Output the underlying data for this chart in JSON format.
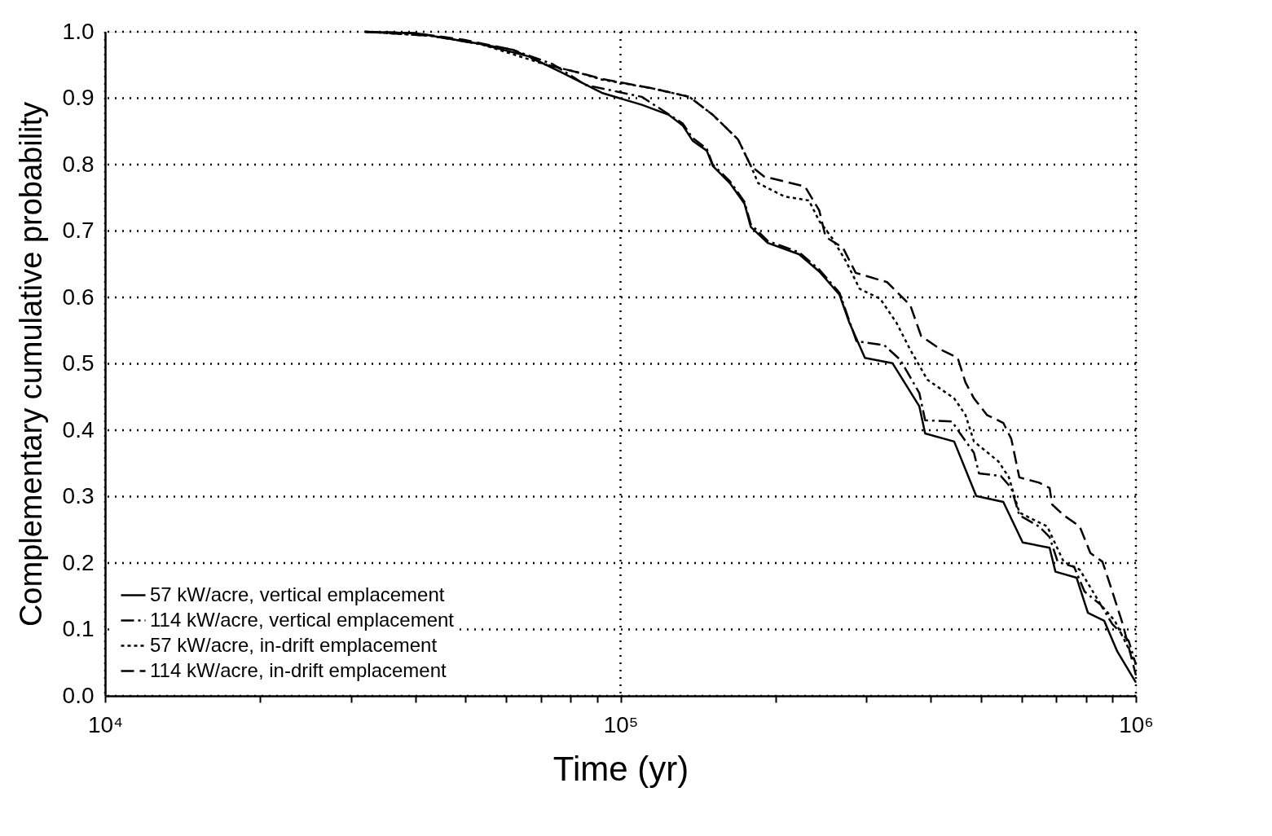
{
  "chart_data": {
    "type": "line",
    "xlabel": "Time (yr)",
    "ylabel": "Complementary cumulative probability",
    "log": "x",
    "xlim": [
      10000,
      1000000
    ],
    "ylim": [
      0,
      1
    ],
    "xticks": [
      {
        "value": 10000,
        "label": "10⁴"
      },
      {
        "value": 20000,
        "label": null
      },
      {
        "value": 30000,
        "label": null
      },
      {
        "value": 40000,
        "label": null
      },
      {
        "value": 50000,
        "label": null
      },
      {
        "value": 60000,
        "label": null
      },
      {
        "value": 70000,
        "label": null
      },
      {
        "value": 80000,
        "label": null
      },
      {
        "value": 90000,
        "label": null
      },
      {
        "value": 100000,
        "label": "10⁵"
      },
      {
        "value": 200000,
        "label": null
      },
      {
        "value": 300000,
        "label": null
      },
      {
        "value": 400000,
        "label": null
      },
      {
        "value": 500000,
        "label": null
      },
      {
        "value": 600000,
        "label": null
      },
      {
        "value": 700000,
        "label": null
      },
      {
        "value": 800000,
        "label": null
      },
      {
        "value": 900000,
        "label": null
      },
      {
        "value": 1000000,
        "label": "10⁶"
      }
    ],
    "yticks": [
      {
        "value": 0,
        "label": "0.0"
      },
      0.1,
      0.2,
      0.3,
      0.4,
      0.5,
      0.6,
      0.7,
      0.8,
      0.9,
      {
        "value": 1,
        "label": "1.0"
      }
    ],
    "grid": true,
    "legend": "bottom left",
    "series": [
      {
        "name": "57 kW/acre, vertical emplacement",
        "color": "#000000",
        "line_style": "solid",
        "x": [
          32000,
          40000,
          53300,
          66300,
          76700,
          92000,
          110000,
          124000,
          132000,
          138000,
          147000,
          151000,
          163000,
          174000,
          179000,
          193000,
          222000,
          243000,
          266000,
          278000,
          298000,
          337000,
          380000,
          390000,
          444000,
          490000,
          553000,
          603000,
          680000,
          698000,
          767000,
          807000,
          868000,
          920000,
          1000000
        ],
        "values": [
          1.0,
          0.998,
          0.982,
          0.963,
          0.939,
          0.908,
          0.89,
          0.875,
          0.859,
          0.836,
          0.821,
          0.798,
          0.772,
          0.741,
          0.706,
          0.682,
          0.665,
          0.639,
          0.604,
          0.562,
          0.509,
          0.501,
          0.436,
          0.395,
          0.383,
          0.301,
          0.292,
          0.231,
          0.223,
          0.187,
          0.178,
          0.125,
          0.113,
          0.067,
          0.02
        ]
      },
      {
        "name": "114 kW/acre, vertical emplacement",
        "color": "#000000",
        "line_style": "dashdot",
        "x": [
          32000,
          42800,
          61700,
          74000,
          85500,
          110000,
          132000,
          138000,
          147000,
          151000,
          163000,
          174000,
          179000,
          193000,
          222000,
          243000,
          266000,
          287000,
          325000,
          349000,
          380000,
          390000,
          440000,
          456000,
          485000,
          496000,
          547000,
          573000,
          594000,
          649000,
          680000,
          705000,
          759000,
          795000,
          855000,
          900000,
          968000,
          1000000
        ],
        "values": [
          1.0,
          0.994,
          0.973,
          0.951,
          0.92,
          0.902,
          0.862,
          0.84,
          0.824,
          0.8,
          0.775,
          0.744,
          0.71,
          0.685,
          0.668,
          0.642,
          0.607,
          0.534,
          0.528,
          0.506,
          0.456,
          0.415,
          0.413,
          0.395,
          0.366,
          0.335,
          0.331,
          0.313,
          0.272,
          0.255,
          0.239,
          0.202,
          0.194,
          0.157,
          0.137,
          0.108,
          0.083,
          0.047
        ]
      },
      {
        "name": "57 kW/acre, in-drift emplacement",
        "color": "#000000",
        "line_style": "dotted",
        "x": [
          32000,
          42800,
          53300,
          71300,
          82500,
          92000,
          115000,
          136000,
          151000,
          169000,
          179000,
          185000,
          208000,
          232000,
          243000,
          257000,
          274000,
          291000,
          319000,
          343000,
          365000,
          394000,
          444000,
          467000,
          485000,
          541000,
          567000,
          594000,
          673000,
          724000,
          778000,
          855000,
          910000,
          968000,
          1000000
        ],
        "values": [
          1.0,
          0.994,
          0.982,
          0.951,
          0.939,
          0.928,
          0.915,
          0.902,
          0.875,
          0.838,
          0.798,
          0.772,
          0.752,
          0.746,
          0.715,
          0.69,
          0.654,
          0.613,
          0.598,
          0.562,
          0.521,
          0.476,
          0.448,
          0.423,
          0.383,
          0.353,
          0.329,
          0.276,
          0.255,
          0.202,
          0.19,
          0.137,
          0.113,
          0.071,
          0.047
        ]
      },
      {
        "name": "114 kW/acre, in-drift emplacement",
        "color": "#000000",
        "line_style": "dashed",
        "x": [
          32000,
          40000,
          49600,
          61700,
          71300,
          82500,
          92000,
          115000,
          136000,
          151000,
          169000,
          179000,
          190000,
          228000,
          243000,
          250000,
          270000,
          286000,
          329000,
          343000,
          365000,
          383000,
          419000,
          451000,
          467000,
          485000,
          514000,
          553000,
          573000,
          594000,
          649000,
          680000,
          688000,
          724000,
          778000,
          816000,
          861000,
          887000,
          943000,
          1000000
        ],
        "values": [
          1.0,
          0.998,
          0.988,
          0.973,
          0.951,
          0.939,
          0.929,
          0.915,
          0.902,
          0.875,
          0.838,
          0.798,
          0.782,
          0.767,
          0.731,
          0.691,
          0.675,
          0.637,
          0.623,
          0.609,
          0.588,
          0.542,
          0.521,
          0.509,
          0.472,
          0.448,
          0.423,
          0.411,
          0.387,
          0.329,
          0.321,
          0.313,
          0.288,
          0.272,
          0.255,
          0.215,
          0.202,
          0.172,
          0.108,
          0.031
        ]
      }
    ]
  }
}
